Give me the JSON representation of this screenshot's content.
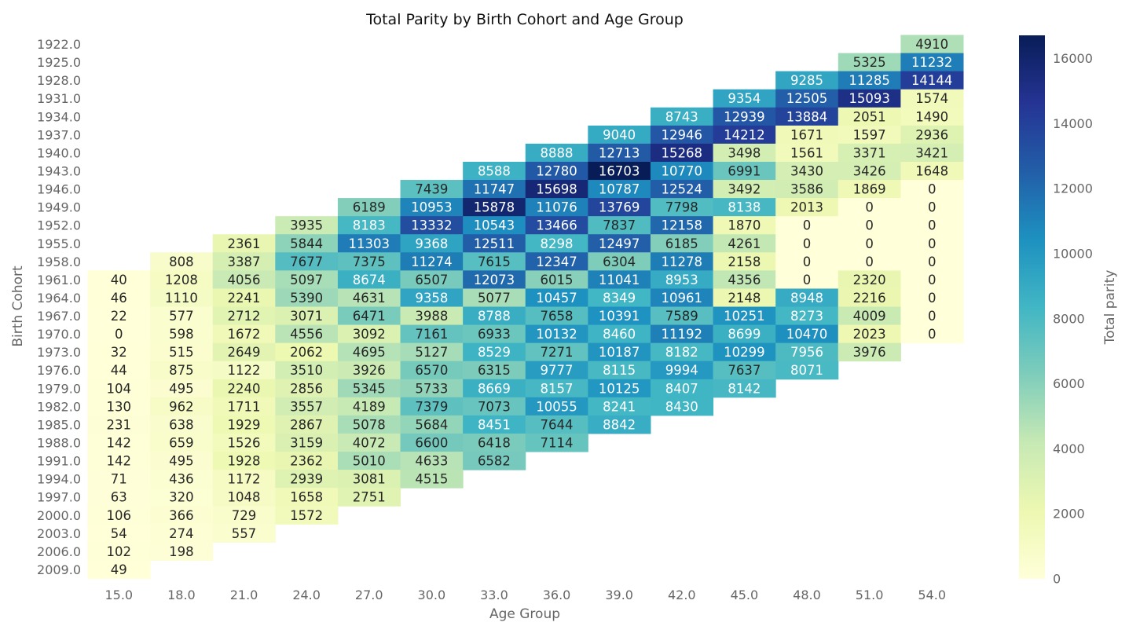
{
  "chart_data": {
    "type": "heatmap",
    "title": "Total Parity by Birth Cohort and Age Group",
    "xlabel": "Age Group",
    "ylabel": "Birth Cohort",
    "colorbar_label": "Total parity",
    "colormap": "YlGnBu",
    "colormap_stops": [
      "#ffffd9",
      "#edf8b1",
      "#c7e9b4",
      "#7fcdbb",
      "#41b6c4",
      "#1d91c0",
      "#225ea8",
      "#253494",
      "#081d58"
    ],
    "vmin": 0,
    "vmax": 16703,
    "colorbar_ticks": [
      "0",
      "2000",
      "4000",
      "6000",
      "8000",
      "10000",
      "12000",
      "14000",
      "16000"
    ],
    "x_categories": [
      "15.0",
      "18.0",
      "21.0",
      "24.0",
      "27.0",
      "30.0",
      "33.0",
      "36.0",
      "39.0",
      "42.0",
      "45.0",
      "48.0",
      "51.0",
      "54.0"
    ],
    "y_categories": [
      "1922.0",
      "1925.0",
      "1928.0",
      "1931.0",
      "1934.0",
      "1937.0",
      "1940.0",
      "1943.0",
      "1946.0",
      "1949.0",
      "1952.0",
      "1955.0",
      "1958.0",
      "1961.0",
      "1964.0",
      "1967.0",
      "1970.0",
      "1973.0",
      "1976.0",
      "1979.0",
      "1982.0",
      "1985.0",
      "1988.0",
      "1991.0",
      "1994.0",
      "1997.0",
      "2000.0",
      "2003.0",
      "2006.0",
      "2009.0"
    ],
    "values": [
      [
        null,
        null,
        null,
        null,
        null,
        null,
        null,
        null,
        null,
        null,
        null,
        null,
        null,
        4910
      ],
      [
        null,
        null,
        null,
        null,
        null,
        null,
        null,
        null,
        null,
        null,
        null,
        null,
        5325,
        11232
      ],
      [
        null,
        null,
        null,
        null,
        null,
        null,
        null,
        null,
        null,
        null,
        null,
        9285,
        11285,
        14144
      ],
      [
        null,
        null,
        null,
        null,
        null,
        null,
        null,
        null,
        null,
        null,
        9354,
        12505,
        15093,
        1574
      ],
      [
        null,
        null,
        null,
        null,
        null,
        null,
        null,
        null,
        null,
        8743,
        12939,
        13884,
        2051,
        1490
      ],
      [
        null,
        null,
        null,
        null,
        null,
        null,
        null,
        null,
        9040,
        12946,
        14212,
        1671,
        1597,
        2936
      ],
      [
        null,
        null,
        null,
        null,
        null,
        null,
        null,
        8888,
        12713,
        15268,
        3498,
        1561,
        3371,
        3421
      ],
      [
        null,
        null,
        null,
        null,
        null,
        null,
        8588,
        12780,
        16703,
        10770,
        6991,
        3430,
        3426,
        1648
      ],
      [
        null,
        null,
        null,
        null,
        null,
        7439,
        11747,
        15698,
        10787,
        12524,
        3492,
        3586,
        1869,
        0
      ],
      [
        null,
        null,
        null,
        null,
        6189,
        10953,
        15878,
        11076,
        13769,
        7798,
        8138,
        2013,
        0,
        0
      ],
      [
        null,
        null,
        null,
        3935,
        8183,
        13332,
        10543,
        13466,
        7837,
        12158,
        1870,
        0,
        0,
        0
      ],
      [
        null,
        null,
        2361,
        5844,
        11303,
        9368,
        12511,
        8298,
        12497,
        6185,
        4261,
        0,
        0,
        0
      ],
      [
        null,
        808,
        3387,
        7677,
        7375,
        11274,
        7615,
        12347,
        6304,
        11278,
        2158,
        0,
        0,
        0
      ],
      [
        40,
        1208,
        4056,
        5097,
        8674,
        6507,
        12073,
        6015,
        11041,
        8953,
        4356,
        0,
        2320,
        0
      ],
      [
        46,
        1110,
        2241,
        5390,
        4631,
        9358,
        5077,
        10457,
        8349,
        10961,
        2148,
        8948,
        2216,
        0
      ],
      [
        22,
        577,
        2712,
        3071,
        6471,
        3988,
        8788,
        7658,
        10391,
        7589,
        10251,
        8273,
        4009,
        0
      ],
      [
        0,
        598,
        1672,
        4556,
        3092,
        7161,
        6933,
        10132,
        8460,
        11192,
        8699,
        10470,
        2023,
        0
      ],
      [
        32,
        515,
        2649,
        2062,
        4695,
        5127,
        8529,
        7271,
        10187,
        8182,
        10299,
        7956,
        3976,
        null
      ],
      [
        44,
        875,
        1122,
        3510,
        3926,
        6570,
        6315,
        9777,
        8115,
        9994,
        7637,
        8071,
        null,
        null
      ],
      [
        104,
        495,
        2240,
        2856,
        5345,
        5733,
        8669,
        8157,
        10125,
        8407,
        8142,
        null,
        null,
        null
      ],
      [
        130,
        962,
        1711,
        3557,
        4189,
        7379,
        7073,
        10055,
        8241,
        8430,
        null,
        null,
        null,
        null
      ],
      [
        231,
        638,
        1929,
        2867,
        5078,
        5684,
        8451,
        7644,
        8842,
        null,
        null,
        null,
        null,
        null
      ],
      [
        142,
        659,
        1526,
        3159,
        4072,
        6600,
        6418,
        7114,
        null,
        null,
        null,
        null,
        null,
        null
      ],
      [
        142,
        495,
        1928,
        2362,
        5010,
        4633,
        6582,
        null,
        null,
        null,
        null,
        null,
        null,
        null
      ],
      [
        71,
        436,
        1172,
        2939,
        3081,
        4515,
        null,
        null,
        null,
        null,
        null,
        null,
        null,
        null
      ],
      [
        63,
        320,
        1048,
        1658,
        2751,
        null,
        null,
        null,
        null,
        null,
        null,
        null,
        null,
        null
      ],
      [
        106,
        366,
        729,
        1572,
        null,
        null,
        null,
        null,
        null,
        null,
        null,
        null,
        null,
        null
      ],
      [
        54,
        274,
        557,
        null,
        null,
        null,
        null,
        null,
        null,
        null,
        null,
        null,
        null,
        null
      ],
      [
        102,
        198,
        null,
        null,
        null,
        null,
        null,
        null,
        null,
        null,
        null,
        null,
        null,
        null
      ],
      [
        49,
        null,
        null,
        null,
        null,
        null,
        null,
        null,
        null,
        null,
        null,
        null,
        null,
        null
      ]
    ],
    "annotated": true,
    "grid": false
  }
}
